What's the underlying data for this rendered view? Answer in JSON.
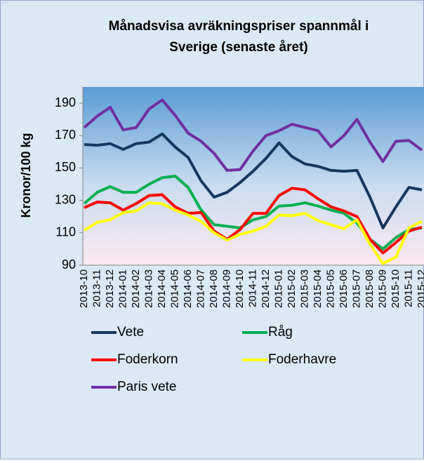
{
  "chart_data": {
    "type": "line",
    "title": "Månadsvisa avräkningspriser spannmål i Sverige (senaste året)",
    "title_lines": [
      "Månadsvisa avräkningspriser spannmål i",
      "Sverige (senaste året)"
    ],
    "ylabel": "Kronor/100 kg",
    "categories": [
      "2013-10",
      "2013-11",
      "2013-12",
      "2014-01",
      "2014-02",
      "2014-03",
      "2014-04",
      "2014-05",
      "2014-06",
      "2014-07",
      "2014-08",
      "2014-09",
      "2014-10",
      "2014-11",
      "2014-12",
      "2015-01",
      "2015-02",
      "2015-03",
      "2015-04",
      "2015-05",
      "2015-06",
      "2015-07",
      "2015-08",
      "2015-09",
      "2015-10",
      "2015-11",
      "2015-12"
    ],
    "series": [
      {
        "name": "Vete",
        "color": "#17375e",
        "values": [
          164.5,
          164,
          165,
          161.5,
          165,
          166,
          171,
          163,
          156.5,
          142,
          132,
          135,
          141,
          148,
          156,
          165.5,
          157,
          152.5,
          151,
          148.5,
          148,
          148.5,
          132,
          113,
          126,
          138,
          136.5
        ]
      },
      {
        "name": "Råg",
        "color": "#00b050",
        "values": [
          128,
          135,
          138.5,
          135,
          135,
          140,
          144,
          145,
          138,
          124,
          115,
          114,
          113,
          118,
          120,
          126.5,
          127,
          128.5,
          126.5,
          124,
          122,
          116,
          106,
          100,
          107,
          112,
          113
        ]
      },
      {
        "name": "Foderkorn",
        "color": "#ff0000",
        "values": [
          125.5,
          129,
          128.5,
          124,
          128,
          133,
          133.5,
          126,
          122,
          122.5,
          111,
          106,
          112,
          122,
          122,
          133,
          137.5,
          136.5,
          131,
          126,
          123.5,
          120,
          106,
          97.5,
          104,
          111,
          113.5
        ]
      },
      {
        "name": "Foderhavre",
        "color": "#ffff00",
        "values": [
          111.5,
          116.5,
          118,
          122.5,
          123.5,
          128.5,
          128,
          124,
          121,
          117,
          110,
          105.5,
          109,
          111,
          114,
          121,
          120.5,
          122,
          117.5,
          115,
          112.5,
          118,
          103,
          91,
          95,
          113,
          117
        ]
      },
      {
        "name": "Paris vete",
        "color": "#7030a0",
        "values": [
          175,
          182,
          187.5,
          173.5,
          175,
          186.5,
          192,
          182.5,
          171.5,
          166.5,
          159,
          148.5,
          149,
          160.5,
          170,
          173,
          177,
          175,
          173,
          163,
          170,
          180,
          166,
          154,
          166.5,
          167,
          161
        ]
      }
    ],
    "ylim": [
      90,
      200
    ],
    "yticks": [
      90,
      110,
      130,
      150,
      170,
      190
    ],
    "grid": false
  }
}
